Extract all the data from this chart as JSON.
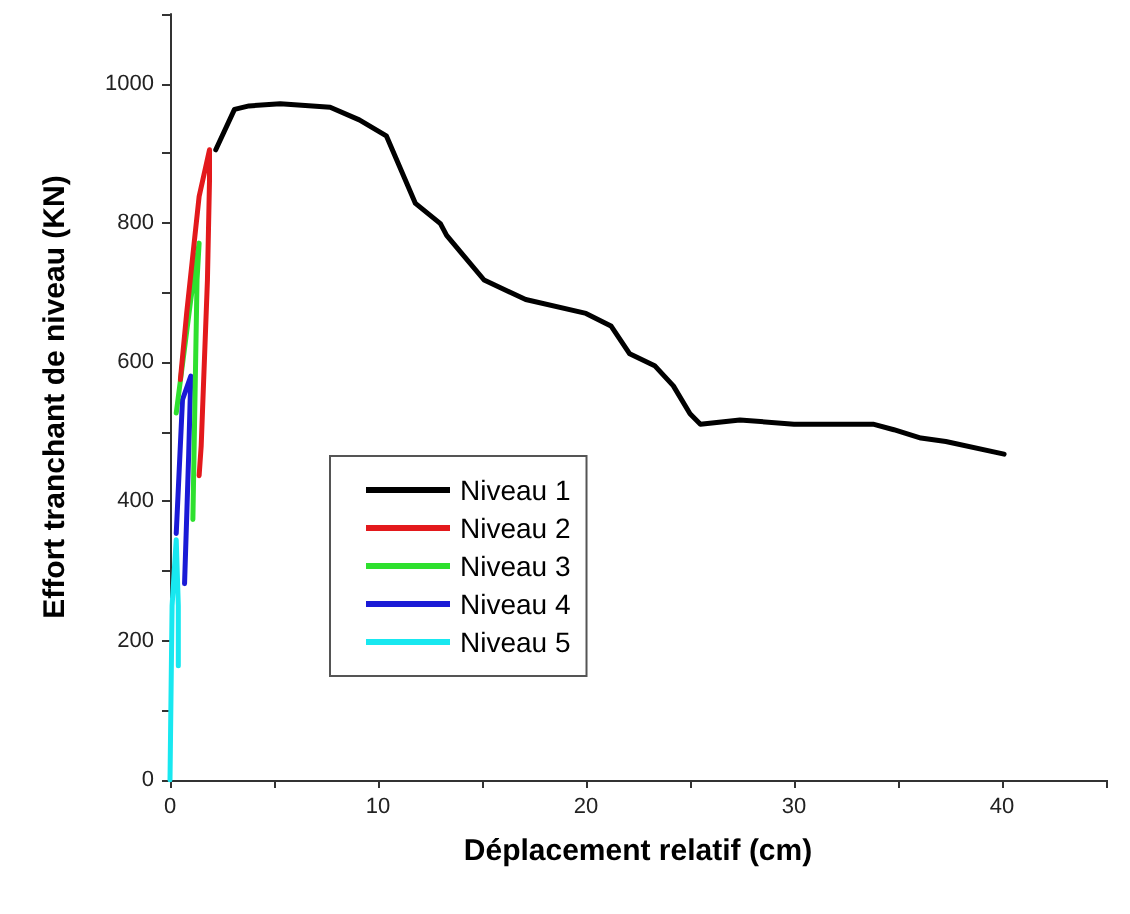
{
  "chart_data": {
    "type": "line",
    "xlabel": "Déplacement relatif (cm)",
    "ylabel": "Effort tranchant de niveau (KN)",
    "xlim": [
      0,
      45
    ],
    "xticks": [
      0,
      {
        "value": 5,
        "label": null
      },
      10,
      {
        "value": 15,
        "label": null
      },
      20,
      {
        "value": 25,
        "label": null
      },
      30,
      {
        "value": 35,
        "label": null
      },
      40,
      {
        "value": 45,
        "label": null
      }
    ],
    "ylim": [
      0,
      1100
    ],
    "yticks": [
      0,
      {
        "value": 100,
        "label": null
      },
      200,
      {
        "value": 300,
        "label": null
      },
      400,
      {
        "value": 500,
        "label": null
      },
      600,
      {
        "value": 700,
        "label": null
      },
      800,
      {
        "value": 900,
        "label": null
      },
      1000,
      {
        "value": 1100,
        "label": null
      }
    ],
    "grid": false,
    "legend": "center",
    "marker": "none",
    "line_style": "solid",
    "series": [
      {
        "name": "Niveau 1",
        "color": "#000000",
        "x": [
          2.2,
          3.1,
          3.8,
          5.3,
          7.7,
          9.1,
          10.4,
          11.8,
          13.0,
          13.3,
          15.1,
          17.1,
          20.0,
          21.2,
          22.1,
          23.3,
          24.2,
          25.0,
          25.5,
          27.4,
          30.0,
          33.8,
          34.8,
          36.1,
          37.3,
          40.1
        ],
        "values": [
          905,
          963,
          968,
          971,
          966,
          948,
          925,
          828,
          799,
          782,
          718,
          690,
          670,
          652,
          612,
          595,
          566,
          526,
          511,
          517,
          511,
          511,
          503,
          491,
          486,
          468
        ]
      },
      {
        "name": "Niveau 2",
        "color": "#e3191c",
        "x": [
          0.5,
          0.8,
          1.4,
          1.9,
          1.9,
          1.8,
          1.5,
          1.4
        ],
        "values": [
          575,
          670,
          838,
          905,
          862,
          718,
          480,
          437
        ]
      },
      {
        "name": "Niveau 3",
        "color": "#2ee02e",
        "x": [
          0.3,
          1.0,
          1.4,
          1.3,
          1.1
        ],
        "values": [
          527,
          690,
          771,
          718,
          374
        ]
      },
      {
        "name": "Niveau 4",
        "color": "#1a1ad6",
        "x": [
          0.3,
          0.6,
          1.0,
          0.9,
          0.7
        ],
        "values": [
          354,
          546,
          580,
          469,
          282
        ]
      },
      {
        "name": "Niveau 5",
        "color": "#18e8f0",
        "x": [
          0,
          0.1,
          0.3,
          0.4,
          0.4
        ],
        "values": [
          0,
          250,
          345,
          250,
          164
        ]
      }
    ]
  }
}
